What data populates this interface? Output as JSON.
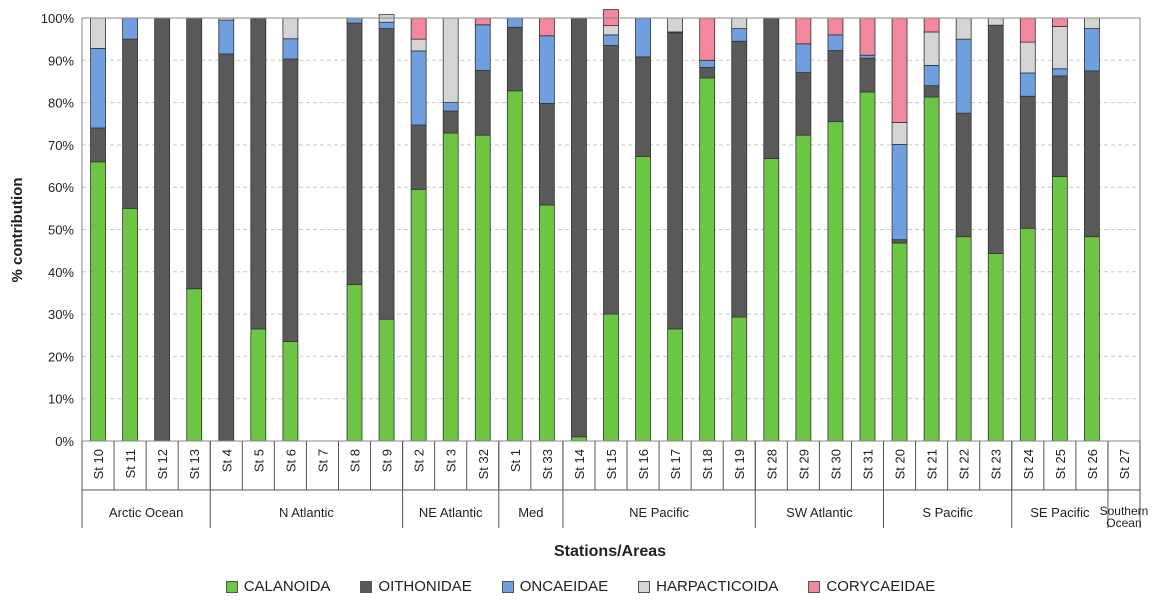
{
  "chart_data": {
    "type": "bar",
    "stacked": true,
    "ylabel": "% contribution",
    "xlabel": "Stations/Areas",
    "ylim": [
      0,
      100
    ],
    "yticks": [
      "0%",
      "10%",
      "20%",
      "30%",
      "40%",
      "50%",
      "60%",
      "70%",
      "80%",
      "90%",
      "100%"
    ],
    "grid": true,
    "legend_position": "bottom",
    "categories": [
      "St 10",
      "St 11",
      "St 12",
      "St 13",
      "St 4",
      "St 5",
      "St 6",
      "St 7",
      "St 8",
      "St 9",
      "St 2",
      "St 3",
      "St 32",
      "St 1",
      "St 33",
      "St 14",
      "St 15",
      "St 16",
      "St 17",
      "St 18",
      "St 19",
      "St 28",
      "St 29",
      "St 30",
      "St 31",
      "St 20",
      "St 21",
      "St 22",
      "St 23",
      "St 24",
      "St 25",
      "St 26",
      "St 27"
    ],
    "groups": [
      {
        "label": "Arctic Ocean",
        "count": 4
      },
      {
        "label": "N Atlantic",
        "count": 6
      },
      {
        "label": "NE Atlantic",
        "count": 3
      },
      {
        "label": "Med",
        "count": 2
      },
      {
        "label": "NE Pacific",
        "count": 6
      },
      {
        "label": "SW Atlantic",
        "count": 4
      },
      {
        "label": "S Pacific",
        "count": 4
      },
      {
        "label": "SE Pacific",
        "count": 3
      },
      {
        "label": "Southern Ocean",
        "count": 1
      }
    ],
    "series": [
      {
        "name": "CALANOIDA",
        "color": "#6cc644",
        "values": [
          66,
          55,
          0,
          36,
          0,
          26.5,
          23.5,
          0,
          37,
          28.8,
          59.5,
          72.8,
          72.3,
          82.8,
          55.8,
          1,
          30,
          67.3,
          26.5,
          85.8,
          29.3,
          66.8,
          72.3,
          75.5,
          82.5,
          46.8,
          81.3,
          48.3,
          44.3,
          50.3,
          62.5,
          48.3,
          0
        ]
      },
      {
        "name": "OITHONIDAE",
        "color": "#595959",
        "values": [
          8,
          40,
          100,
          64,
          91.5,
          73.5,
          66.8,
          0,
          61.8,
          68.7,
          15.2,
          5.2,
          15.3,
          15,
          24,
          99,
          63.5,
          23.5,
          70,
          2.5,
          65.2,
          33.2,
          14.8,
          16.8,
          8,
          0.8,
          2.7,
          29.2,
          54,
          31.2,
          23.8,
          39.2,
          0
        ]
      },
      {
        "name": "ONCAEIDAE",
        "color": "#6f9fde",
        "values": [
          18.8,
          5,
          0,
          0,
          8,
          0,
          4.8,
          0,
          1.2,
          1.5,
          17.5,
          2,
          10.8,
          2.2,
          16,
          0,
          2.5,
          9.2,
          0.2,
          1.7,
          3,
          0,
          6.8,
          3.7,
          0.7,
          22.5,
          4.8,
          17.5,
          0,
          5.5,
          1.7,
          10,
          0
        ]
      },
      {
        "name": "HARPACTICOIDA",
        "color": "#d4d4d4",
        "values": [
          7.2,
          0,
          0,
          0,
          0.5,
          0,
          4.9,
          0,
          0,
          1.8,
          2.8,
          20,
          0,
          0,
          0,
          0,
          2.2,
          0,
          3.3,
          0,
          2.5,
          0,
          0,
          0,
          0,
          5.2,
          7.9,
          5,
          1.7,
          7.3,
          10,
          2.5,
          0
        ]
      },
      {
        "name": "CORYCAEIDAE",
        "color": "#f2879e",
        "values": [
          0,
          0,
          0,
          0,
          0,
          0,
          0,
          0,
          0,
          0,
          5,
          0,
          1.6,
          0,
          4.2,
          0,
          3.8,
          0,
          0,
          10,
          0,
          0,
          6.1,
          4,
          8.8,
          24.7,
          3.3,
          0,
          0,
          5.7,
          2,
          0,
          0
        ]
      }
    ]
  }
}
